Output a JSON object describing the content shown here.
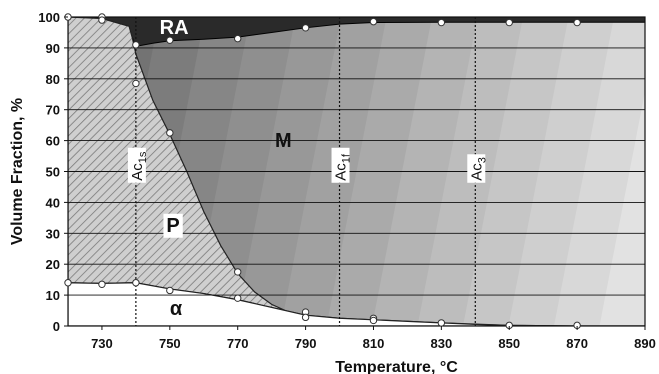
{
  "chart_data": {
    "type": "area",
    "title": "",
    "xlabel": "Temperature, °C",
    "ylabel": "Volume Fraction, %",
    "xlim": [
      720,
      890
    ],
    "ylim": [
      0,
      100
    ],
    "x_ticks": [
      730,
      750,
      770,
      790,
      810,
      830,
      850,
      870,
      890
    ],
    "y_ticks": [
      0,
      10,
      20,
      30,
      40,
      50,
      60,
      70,
      80,
      90,
      100
    ],
    "grid": "horizontal",
    "region_labels": {
      "ra": "RA",
      "m": "M",
      "p": "P",
      "alpha": "α"
    },
    "critical_temperatures": [
      {
        "label_main": "Ac",
        "label_sub": "1s",
        "x": 740
      },
      {
        "label_main": "Ac",
        "label_sub": "1f",
        "x": 800
      },
      {
        "label_main": "Ac",
        "label_sub": "3",
        "x": 840
      }
    ],
    "boundaries": {
      "alpha": {
        "x": [
          720,
          730,
          740,
          750,
          760,
          770,
          780,
          790,
          800,
          810,
          820,
          830,
          840,
          850,
          870,
          890
        ],
        "y": [
          14,
          13.8,
          14,
          12,
          10.5,
          8.5,
          6,
          3.5,
          2.5,
          2,
          1.5,
          1,
          0.5,
          0.2,
          0,
          0
        ]
      },
      "pearlite_top": {
        "x": [
          720,
          730,
          738,
          739,
          740,
          745,
          750,
          755,
          760,
          765,
          770,
          775,
          780,
          785,
          790,
          800,
          810,
          830,
          850,
          870,
          890
        ],
        "y": [
          100,
          99.5,
          97,
          93,
          88,
          73,
          62,
          50,
          37,
          26,
          17,
          11,
          7,
          4.5,
          3.5,
          2.5,
          2,
          1,
          0.2,
          0,
          0
        ]
      },
      "martensite_top": {
        "x": [
          720,
          730,
          738,
          740,
          745,
          750,
          760,
          770,
          780,
          790,
          800,
          810,
          830,
          850,
          870,
          890
        ],
        "y": [
          100,
          99.7,
          96,
          90.5,
          91.5,
          92.3,
          92.8,
          93.5,
          95,
          96.5,
          97.7,
          98.2,
          98.3,
          98.3,
          98.3,
          98.3
        ]
      }
    },
    "markers": [
      {
        "x": 720,
        "y": 100
      },
      {
        "x": 730,
        "y": 100
      },
      {
        "x": 730,
        "y": 99
      },
      {
        "x": 740,
        "y": 91
      },
      {
        "x": 740,
        "y": 78.5
      },
      {
        "x": 750,
        "y": 92.5
      },
      {
        "x": 750,
        "y": 62.5
      },
      {
        "x": 770,
        "y": 93
      },
      {
        "x": 770,
        "y": 17.5
      },
      {
        "x": 790,
        "y": 96.5
      },
      {
        "x": 790,
        "y": 4.5
      },
      {
        "x": 790,
        "y": 2.8
      },
      {
        "x": 810,
        "y": 98.5
      },
      {
        "x": 810,
        "y": 2.5
      },
      {
        "x": 810,
        "y": 1.8
      },
      {
        "x": 830,
        "y": 98.2
      },
      {
        "x": 830,
        "y": 1
      },
      {
        "x": 850,
        "y": 98.2
      },
      {
        "x": 850,
        "y": 0.2
      },
      {
        "x": 870,
        "y": 98.2
      },
      {
        "x": 870,
        "y": 0.2
      },
      {
        "x": 720,
        "y": 14
      },
      {
        "x": 730,
        "y": 13.5
      },
      {
        "x": 740,
        "y": 14
      },
      {
        "x": 750,
        "y": 11.5
      },
      {
        "x": 770,
        "y": 9
      }
    ],
    "colors": {
      "ra": "#2a2a2a",
      "m_dark": "#6a6a6a",
      "m_light": "#f4f4f4",
      "pearlite_fill": "#cfcfcf",
      "pearlite_hatch": "#7a7a7a",
      "alpha_fill": "#ffffff",
      "grid": "#111111"
    }
  }
}
